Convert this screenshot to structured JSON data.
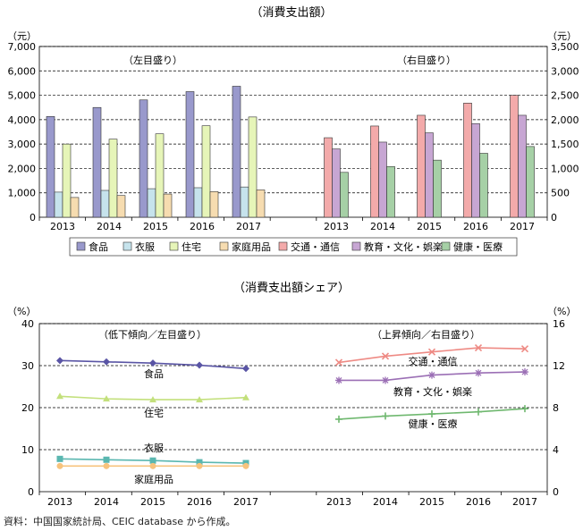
{
  "source_note": "資料：中国国家統計局、CEIC database から作成。",
  "chart_data": [
    {
      "type": "bar",
      "title": "（消費支出額）",
      "categories": [
        "2013",
        "2014",
        "2015",
        "2016",
        "2017"
      ],
      "left_panel": {
        "annotation": "（左目盛り）",
        "unit": "（元）",
        "ylim": [
          0,
          7000
        ],
        "yticks": [
          "0",
          "1,000",
          "2,000",
          "3,000",
          "4,000",
          "5,000",
          "6,000",
          "7,000"
        ],
        "series": [
          {
            "name": "食品",
            "color": "#9999cc",
            "values": [
              4130,
              4500,
              4810,
              5150,
              5370
            ]
          },
          {
            "name": "衣服",
            "color": "#c6e3ec",
            "values": [
              1030,
              1100,
              1170,
              1210,
              1240
            ]
          },
          {
            "name": "住宅",
            "color": "#e6f5b8",
            "values": [
              3000,
              3200,
              3420,
              3750,
              4110
            ]
          },
          {
            "name": "家庭用品",
            "color": "#f6dcb0",
            "values": [
              810,
              890,
              950,
              1050,
              1120
            ]
          }
        ]
      },
      "right_panel": {
        "annotation": "（右目盛り）",
        "unit": "（元）",
        "ylim": [
          0,
          3500
        ],
        "yticks": [
          "0",
          "500",
          "1,000",
          "1,500",
          "2,000",
          "2,500",
          "3,000",
          "3,500"
        ],
        "series": [
          {
            "name": "交通・通信",
            "color": "#f3aaaa",
            "values": [
              1630,
              1870,
              2090,
              2340,
              2500
            ]
          },
          {
            "name": "教育・文化・娯楽",
            "color": "#c7a6d3",
            "values": [
              1400,
              1540,
              1730,
              1920,
              2090
            ]
          },
          {
            "name": "健康・医療",
            "color": "#a6d0a6",
            "values": [
              920,
              1040,
              1170,
              1310,
              1450
            ]
          }
        ]
      },
      "legend": [
        "食品",
        "衣服",
        "住宅",
        "家庭用品",
        "交通・通信",
        "教育・文化・娯楽",
        "健康・医療"
      ]
    },
    {
      "type": "line",
      "title": "（消費支出額シェア）",
      "categories": [
        "2013",
        "2014",
        "2015",
        "2016",
        "2017"
      ],
      "left_panel": {
        "annotation": "（低下傾向／左目盛り）",
        "unit": "（%）",
        "ylim": [
          0,
          40
        ],
        "yticks": [
          "0",
          "10",
          "20",
          "30",
          "40"
        ],
        "series": [
          {
            "name": "食品",
            "color": "#5a55a5",
            "marker": "diamond",
            "values": [
              31.2,
              30.9,
              30.6,
              30.1,
              29.3
            ]
          },
          {
            "name": "住宅",
            "color": "#c3e07c",
            "marker": "triangle",
            "values": [
              22.7,
              22.1,
              21.9,
              21.9,
              22.4
            ]
          },
          {
            "name": "衣服",
            "color": "#5ab7b0",
            "marker": "square",
            "values": [
              7.8,
              7.6,
              7.4,
              7.0,
              6.8
            ]
          },
          {
            "name": "家庭用品",
            "color": "#f7c37d",
            "marker": "circle",
            "values": [
              6.1,
              6.1,
              6.1,
              6.1,
              6.1
            ]
          }
        ]
      },
      "right_panel": {
        "annotation": "（上昇傾向／右目盛り）",
        "unit": "（%）",
        "ylim": [
          0,
          16
        ],
        "yticks": [
          "0",
          "4",
          "8",
          "12",
          "16"
        ],
        "series": [
          {
            "name": "交通・通信",
            "color": "#ee8a84",
            "marker": "x",
            "values": [
              12.3,
              12.9,
              13.3,
              13.7,
              13.6
            ]
          },
          {
            "name": "教育・文化・娯楽",
            "color": "#9b6fb5",
            "marker": "star",
            "values": [
              10.6,
              10.6,
              11.1,
              11.3,
              11.4
            ]
          },
          {
            "name": "健康・医療",
            "color": "#6fb86f",
            "marker": "plus",
            "values": [
              6.9,
              7.2,
              7.4,
              7.6,
              7.9
            ]
          }
        ]
      }
    }
  ]
}
